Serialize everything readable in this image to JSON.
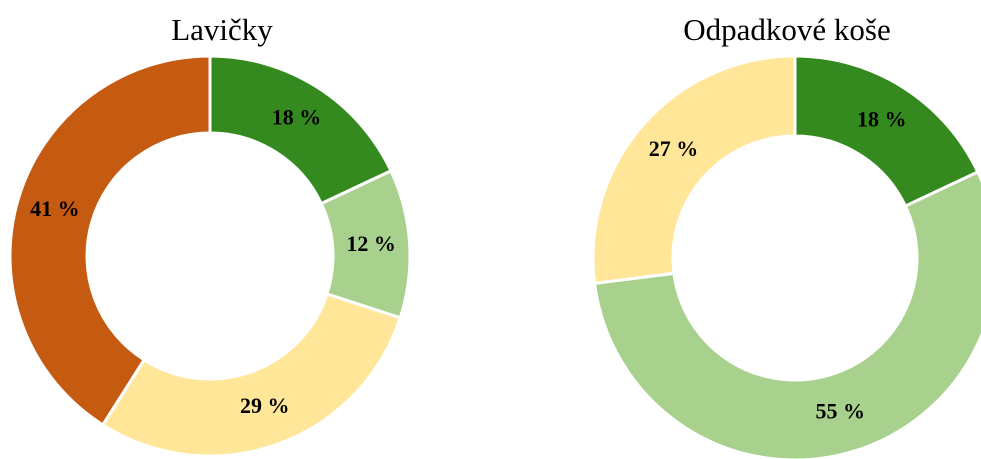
{
  "chart_data": [
    {
      "type": "donut",
      "title": "Lavičky",
      "values": [
        18,
        12,
        29,
        41
      ],
      "value_labels": [
        "18 %",
        "12 %",
        "29 %",
        "41 %"
      ],
      "colors": [
        "#348a1e",
        "#a9d18e",
        "#ffe699",
        "#c55a11"
      ]
    },
    {
      "type": "donut",
      "title": "Odpadkové koše",
      "values": [
        18,
        55,
        27
      ],
      "value_labels": [
        "18 %",
        "55 %",
        "27 %"
      ],
      "colors": [
        "#348a1e",
        "#a9d18e",
        "#ffe699"
      ]
    }
  ]
}
